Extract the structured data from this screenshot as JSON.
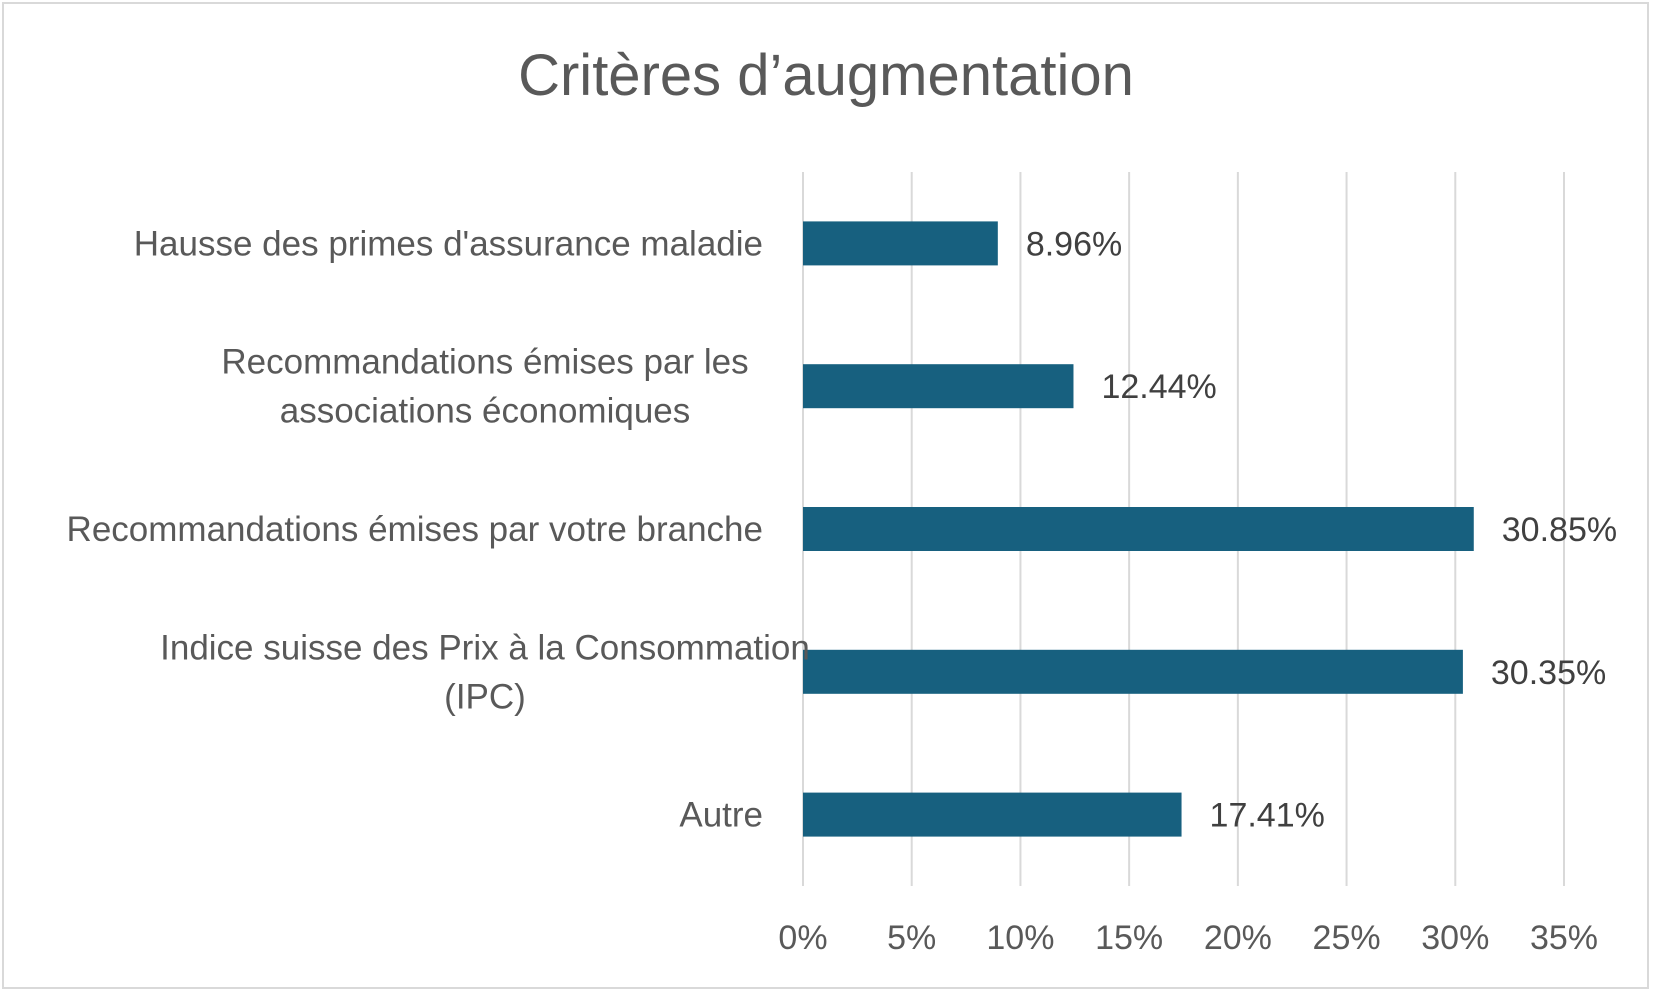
{
  "chart_data": {
    "type": "bar",
    "orientation": "horizontal",
    "title": "Critères d’augmentation",
    "categories": [
      [
        "Hausse des primes d'assurance maladie"
      ],
      [
        "Recommandations émises par les",
        "associations économiques"
      ],
      [
        "Recommandations émises par votre branche"
      ],
      [
        "Indice suisse des Prix à la Consommation",
        "(IPC)"
      ],
      [
        "Autre"
      ]
    ],
    "values": [
      8.96,
      12.44,
      30.85,
      30.35,
      17.41
    ],
    "data_labels": [
      "8.96%",
      "12.44%",
      "30.85%",
      "30.35%",
      "17.41%"
    ],
    "xlim": [
      0,
      35
    ],
    "xticks": [
      0,
      5,
      10,
      15,
      20,
      25,
      30,
      35
    ],
    "xtick_labels": [
      "0%",
      "5%",
      "10%",
      "15%",
      "20%",
      "25%",
      "30%",
      "35%"
    ],
    "xlabel": "",
    "ylabel": "",
    "grid": "vertical",
    "legend": "none",
    "bar_color": "#17607f"
  }
}
